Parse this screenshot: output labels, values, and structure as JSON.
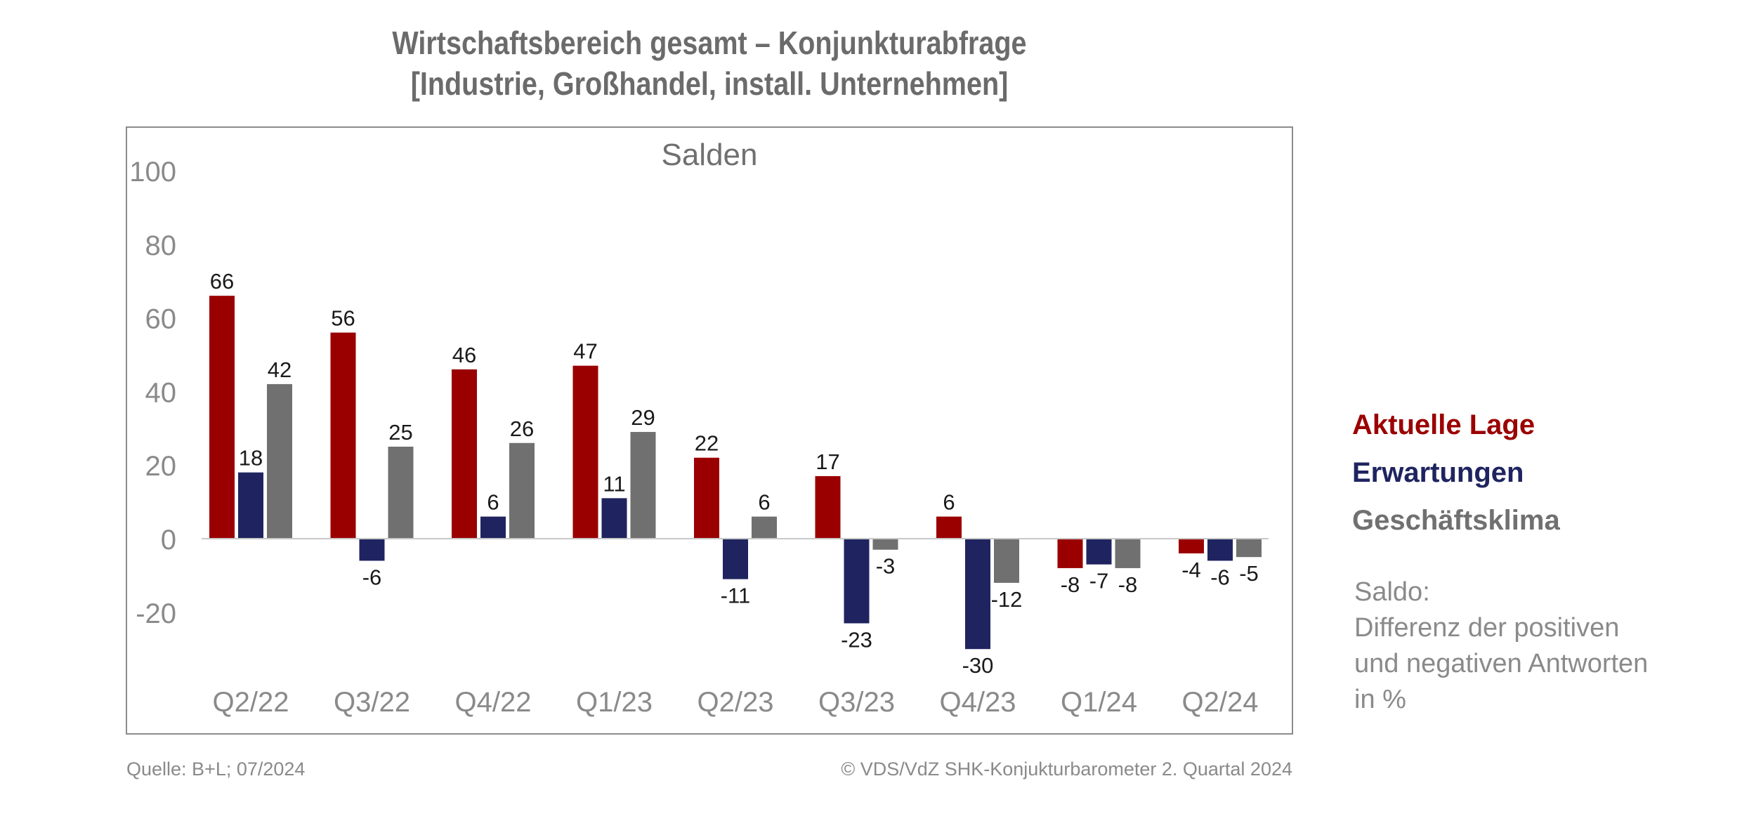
{
  "title_line1": "Wirtschaftsbereich gesamt – Konjunkturabfrage",
  "title_line2": "[Industrie, Großhandel, install. Unternehmen]",
  "note_lines": [
    "Saldo:",
    "Differenz der positiven",
    "und negativen Antworten",
    "in %"
  ],
  "source": "Quelle: B+L; 07/2024",
  "copyright": "© VDS/VdZ SHK-Konjukturbarometer 2. Quartal 2024",
  "chart_data": {
    "type": "bar",
    "subtitle": "Salden",
    "categories": [
      "Q2/22",
      "Q3/22",
      "Q4/22",
      "Q1/23",
      "Q2/23",
      "Q3/23",
      "Q4/23",
      "Q1/24",
      "Q2/24"
    ],
    "series": [
      {
        "name": "Aktuelle Lage",
        "color": "#9b0000",
        "values": [
          66,
          56,
          46,
          47,
          22,
          17,
          6,
          -8,
          -4
        ]
      },
      {
        "name": "Erwartungen",
        "color": "#1f2460",
        "values": [
          18,
          -6,
          6,
          11,
          -11,
          -23,
          -30,
          -7,
          -6
        ]
      },
      {
        "name": "Geschäftsklima",
        "color": "#707070",
        "values": [
          42,
          25,
          26,
          29,
          6,
          -3,
          -12,
          -8,
          -5
        ]
      }
    ],
    "yticks": [
      100,
      80,
      60,
      40,
      20,
      0,
      -20
    ],
    "ylim": [
      -40,
      100
    ],
    "grid": false,
    "legend_position": "right"
  }
}
